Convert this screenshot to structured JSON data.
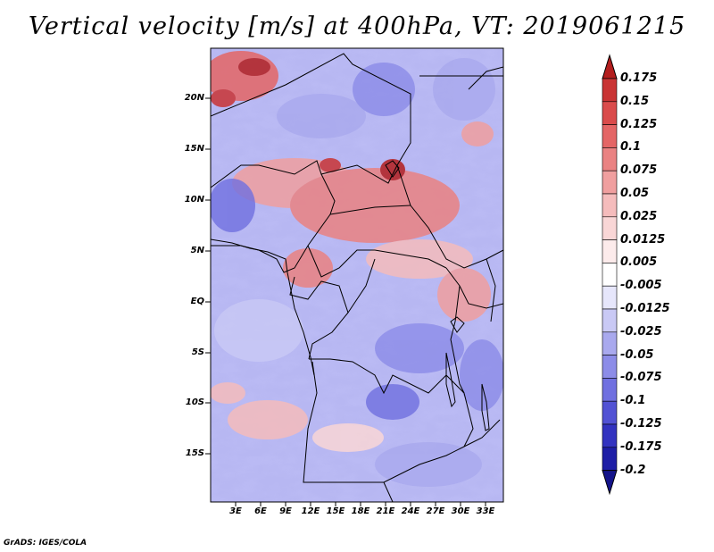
{
  "title": "Vertical velocity [m/s] at 400hPa, VT: 2019061215",
  "latitude_labels": [
    "20N",
    "15N",
    "10N",
    "5N",
    "EQ",
    "5S",
    "10S",
    "15S"
  ],
  "longitude_labels": [
    "3E",
    "6E",
    "9E",
    "12E",
    "15E",
    "18E",
    "21E",
    "24E",
    "27E",
    "30E",
    "33E"
  ],
  "colorbar": {
    "levels": [
      "0.175",
      "0.15",
      "0.125",
      "0.1",
      "0.075",
      "0.05",
      "0.025",
      "0.0125",
      "0.005",
      "-0.005",
      "-0.0125",
      "-0.025",
      "-0.05",
      "-0.075",
      "-0.1",
      "-0.125",
      "-0.175",
      "-0.2"
    ],
    "colors": [
      "#b31e1e",
      "#c93434",
      "#da4b4b",
      "#e46666",
      "#ea8282",
      "#f09f9f",
      "#f5bcbc",
      "#f9d6d6",
      "#fcebeb",
      "#ffffff",
      "#e6e6fb",
      "#c9c9f5",
      "#a9a9ee",
      "#8c8ce8",
      "#7070e0",
      "#5252d4",
      "#3333c0",
      "#1e1ea6",
      "#14148a"
    ]
  },
  "credit": "GrADS: IGES/COLA"
}
